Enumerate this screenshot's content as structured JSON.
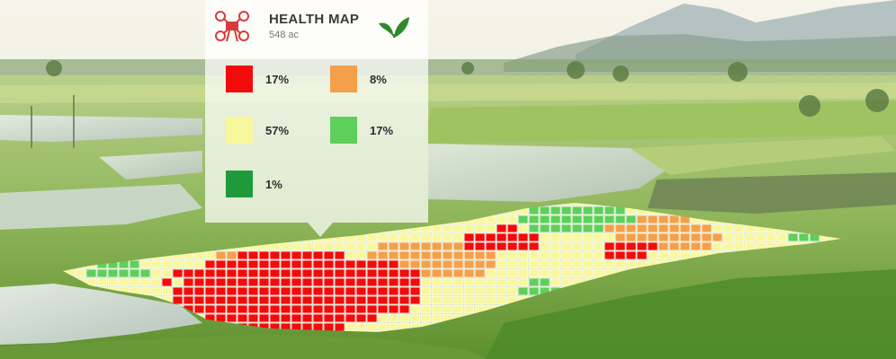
{
  "card": {
    "title": "HEALTH MAP",
    "subtitle": "548 ac",
    "drone_icon": "drone-icon",
    "leaf_icon": "leaf-icon"
  },
  "legend": [
    {
      "label": "17%",
      "color": "#f20b0b"
    },
    {
      "label": "8%",
      "color": "#f4a04a"
    },
    {
      "label": "57%",
      "color": "#f9f79e"
    },
    {
      "label": "17%",
      "color": "#5fcf5c"
    },
    {
      "label": "1%",
      "color": "#1e9a3c"
    }
  ],
  "colors": {
    "red": "#f20b0b",
    "orange": "#f4a04a",
    "yellow": "#f9f79e",
    "light_green": "#5fcf5c",
    "dark_green": "#1e9a3c"
  }
}
